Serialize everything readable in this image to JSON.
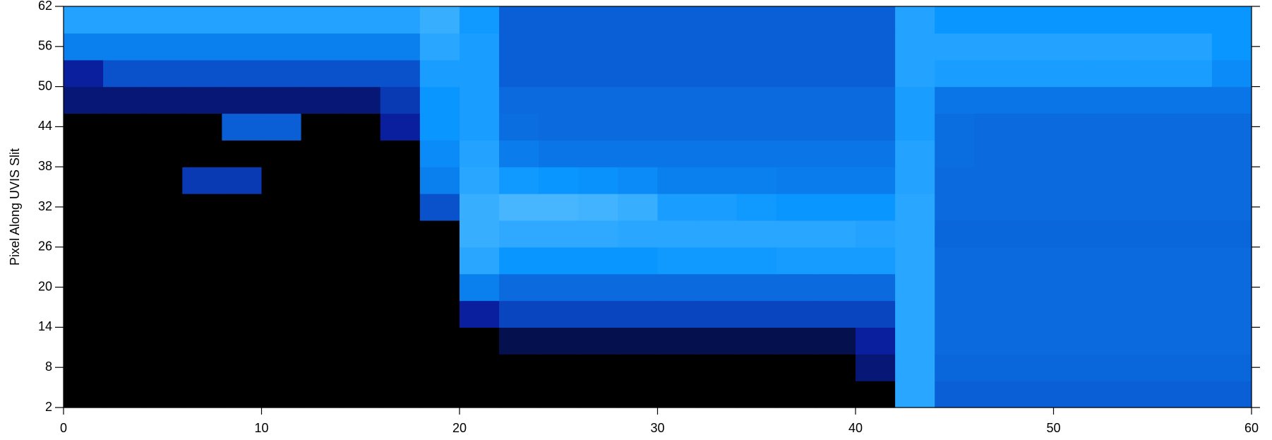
{
  "chart_data": {
    "type": "heatmap",
    "ylabel": "Pixel Along UVIS Slit",
    "xlim": [
      0,
      60
    ],
    "ylim": [
      2,
      62
    ],
    "xticks": [
      0,
      10,
      20,
      30,
      40,
      50,
      60
    ],
    "yticks": [
      2,
      8,
      14,
      20,
      26,
      32,
      38,
      44,
      50,
      56,
      62
    ],
    "zlim": [
      0,
      1
    ],
    "colormap": {
      "stops": [
        0,
        0.2,
        0.45,
        0.7,
        1
      ],
      "colors": [
        "#000000",
        "#0a1f9e",
        "#0a5fd6",
        "#0a96ff",
        "#66c6ff"
      ]
    },
    "z": [
      [
        0,
        0,
        0,
        0,
        0,
        0,
        0,
        0,
        0,
        0,
        0,
        0,
        0,
        0,
        0,
        0,
        0,
        0,
        0,
        0,
        0,
        0.8,
        0.45,
        0.45,
        0.45,
        0.45,
        0.45,
        0.45,
        0.45,
        0.45
      ],
      [
        0,
        0,
        0,
        0,
        0,
        0,
        0,
        0,
        0,
        0,
        0,
        0,
        0,
        0,
        0,
        0,
        0,
        0,
        0,
        0,
        0.15,
        0.8,
        0.48,
        0.48,
        0.48,
        0.48,
        0.48,
        0.48,
        0.48,
        0.48
      ],
      [
        0,
        0,
        0,
        0,
        0,
        0,
        0,
        0,
        0,
        0,
        0,
        0.1,
        0.1,
        0.1,
        0.1,
        0.1,
        0.1,
        0.1,
        0.1,
        0.1,
        0.2,
        0.8,
        0.5,
        0.5,
        0.5,
        0.5,
        0.5,
        0.5,
        0.5,
        0.5
      ],
      [
        0,
        0,
        0,
        0,
        0,
        0,
        0,
        0,
        0,
        0,
        0.2,
        0.35,
        0.35,
        0.35,
        0.35,
        0.35,
        0.35,
        0.35,
        0.35,
        0.35,
        0.35,
        0.8,
        0.5,
        0.5,
        0.5,
        0.5,
        0.5,
        0.5,
        0.5,
        0.5
      ],
      [
        0,
        0,
        0,
        0,
        0,
        0,
        0,
        0,
        0,
        0,
        0.6,
        0.5,
        0.5,
        0.5,
        0.5,
        0.5,
        0.5,
        0.5,
        0.5,
        0.5,
        0.5,
        0.8,
        0.5,
        0.5,
        0.5,
        0.5,
        0.5,
        0.5,
        0.5,
        0.5
      ],
      [
        0,
        0,
        0,
        0,
        0,
        0,
        0,
        0,
        0,
        0,
        0.8,
        0.7,
        0.7,
        0.7,
        0.7,
        0.72,
        0.72,
        0.72,
        0.74,
        0.74,
        0.74,
        0.8,
        0.5,
        0.5,
        0.5,
        0.5,
        0.5,
        0.5,
        0.5,
        0.5
      ],
      [
        0,
        0,
        0,
        0,
        0,
        0,
        0,
        0,
        0,
        0,
        0.85,
        0.82,
        0.82,
        0.82,
        0.8,
        0.8,
        0.8,
        0.8,
        0.8,
        0.8,
        0.78,
        0.8,
        0.48,
        0.48,
        0.48,
        0.48,
        0.48,
        0.48,
        0.48,
        0.48
      ],
      [
        0,
        0,
        0,
        0,
        0,
        0,
        0,
        0,
        0,
        0.4,
        0.85,
        0.9,
        0.9,
        0.88,
        0.85,
        0.75,
        0.75,
        0.72,
        0.7,
        0.7,
        0.7,
        0.8,
        0.5,
        0.5,
        0.5,
        0.5,
        0.5,
        0.5,
        0.5,
        0.5
      ],
      [
        0,
        0,
        0,
        0.3,
        0.3,
        0,
        0,
        0,
        0,
        0.6,
        0.8,
        0.72,
        0.7,
        0.68,
        0.65,
        0.6,
        0.6,
        0.6,
        0.58,
        0.58,
        0.58,
        0.78,
        0.5,
        0.5,
        0.5,
        0.5,
        0.5,
        0.5,
        0.5,
        0.5
      ],
      [
        0,
        0,
        0,
        0,
        0,
        0,
        0,
        0,
        0,
        0.65,
        0.78,
        0.58,
        0.55,
        0.55,
        0.55,
        0.55,
        0.55,
        0.55,
        0.55,
        0.55,
        0.55,
        0.78,
        0.52,
        0.5,
        0.5,
        0.5,
        0.5,
        0.5,
        0.5,
        0.5
      ],
      [
        0,
        0,
        0,
        0,
        0.45,
        0.45,
        0,
        0,
        0.2,
        0.7,
        0.75,
        0.52,
        0.5,
        0.5,
        0.5,
        0.5,
        0.5,
        0.5,
        0.5,
        0.5,
        0.5,
        0.75,
        0.52,
        0.5,
        0.5,
        0.5,
        0.5,
        0.5,
        0.5,
        0.5
      ],
      [
        0.15,
        0.15,
        0.15,
        0.15,
        0.15,
        0.15,
        0.15,
        0.15,
        0.3,
        0.7,
        0.75,
        0.5,
        0.5,
        0.5,
        0.5,
        0.5,
        0.5,
        0.5,
        0.5,
        0.5,
        0.5,
        0.75,
        0.55,
        0.55,
        0.55,
        0.55,
        0.55,
        0.55,
        0.55,
        0.55
      ],
      [
        0.2,
        0.4,
        0.4,
        0.4,
        0.4,
        0.4,
        0.4,
        0.4,
        0.4,
        0.75,
        0.75,
        0.45,
        0.45,
        0.45,
        0.45,
        0.45,
        0.45,
        0.45,
        0.45,
        0.45,
        0.45,
        0.78,
        0.75,
        0.75,
        0.75,
        0.75,
        0.75,
        0.75,
        0.75,
        0.65
      ],
      [
        0.6,
        0.6,
        0.6,
        0.6,
        0.6,
        0.6,
        0.6,
        0.6,
        0.6,
        0.8,
        0.75,
        0.45,
        0.45,
        0.45,
        0.45,
        0.45,
        0.45,
        0.45,
        0.45,
        0.45,
        0.45,
        0.78,
        0.78,
        0.78,
        0.78,
        0.78,
        0.78,
        0.78,
        0.78,
        0.7
      ],
      [
        0.78,
        0.78,
        0.78,
        0.78,
        0.78,
        0.78,
        0.78,
        0.78,
        0.78,
        0.85,
        0.72,
        0.45,
        0.45,
        0.45,
        0.45,
        0.45,
        0.45,
        0.45,
        0.45,
        0.45,
        0.45,
        0.78,
        0.7,
        0.7,
        0.7,
        0.7,
        0.7,
        0.7,
        0.7,
        0.7
      ]
    ]
  }
}
